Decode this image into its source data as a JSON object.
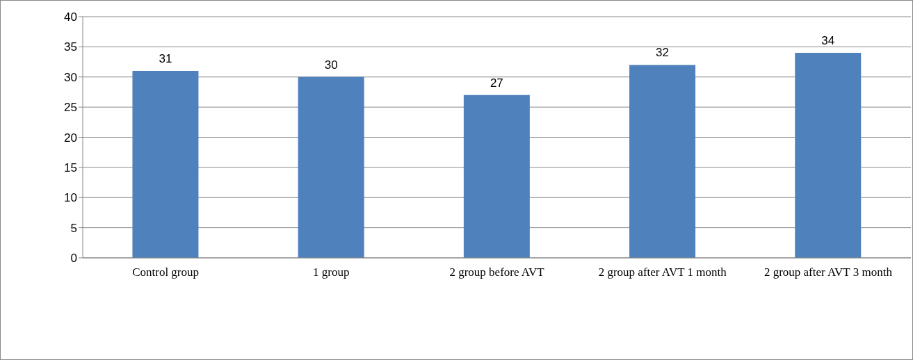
{
  "chart_data": {
    "type": "bar",
    "categories": [
      "Control group",
      "1 group",
      "2 group before AVT",
      "2 group after AVT 1 month",
      "2 group after AVT 3 month"
    ],
    "values": [
      31,
      30,
      27,
      32,
      34
    ],
    "color": "#4f81bd",
    "ylim": [
      0,
      40
    ],
    "yticks": [
      0,
      5,
      10,
      15,
      20,
      25,
      30,
      35,
      40
    ],
    "grid": "y",
    "data_labels": true
  }
}
